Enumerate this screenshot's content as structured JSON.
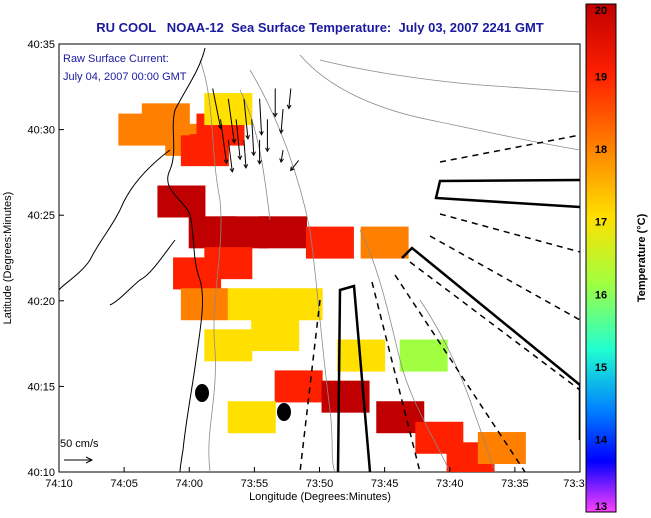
{
  "title": "RU COOL   NOAA-12  Sea Surface Temperature:  July 03, 2007 2241 GMT",
  "current_label": "Raw Surface Current:",
  "current_time": "July 04, 2007 00:00 GMT",
  "scale_label": "50 cm/s",
  "x_axis_label": "Longitude (Degrees:Minutes)",
  "y_axis_label": "Latitude (Degrees:Minutes)",
  "x_ticks": [
    "74:10",
    "74:05",
    "74:00",
    "73:55",
    "73:50",
    "73:45",
    "73:40",
    "73:35",
    "73:3"
  ],
  "y_ticks": [
    "40:35",
    "40:30",
    "40:25",
    "40:20",
    "40:15",
    "40:10"
  ],
  "colorbar": {
    "label": "Temperature (°C)",
    "min": 13,
    "max": 20,
    "ticks": [
      "20",
      "19",
      "18",
      "17",
      "16",
      "15",
      "14",
      "13"
    ],
    "colors": [
      "#c00000",
      "#ff2000",
      "#ff8000",
      "#ffe000",
      "#a0ff40",
      "#20ffd0",
      "#0080ff",
      "#0000ff",
      "#ff40ff"
    ]
  },
  "sst_cells": [
    {
      "lon": 74.0,
      "lat": 40.49,
      "t": 18.6
    },
    {
      "lon": 73.98,
      "lat": 40.48,
      "t": 19.2
    },
    {
      "lon": 73.96,
      "lat": 40.5,
      "t": 18.8
    },
    {
      "lon": 74.03,
      "lat": 40.51,
      "t": 18.2
    },
    {
      "lon": 74.06,
      "lat": 40.5,
      "t": 18.4
    },
    {
      "lon": 73.95,
      "lat": 40.52,
      "t": 17.8
    },
    {
      "lon": 74.01,
      "lat": 40.43,
      "t": 19.8
    },
    {
      "lon": 73.97,
      "lat": 40.4,
      "t": 19.7
    },
    {
      "lon": 73.93,
      "lat": 40.4,
      "t": 19.6
    },
    {
      "lon": 73.88,
      "lat": 40.4,
      "t": 19.8
    },
    {
      "lon": 73.82,
      "lat": 40.39,
      "t": 19.3
    },
    {
      "lon": 73.75,
      "lat": 40.39,
      "t": 18.4
    },
    {
      "lon": 73.99,
      "lat": 40.36,
      "t": 19.4
    },
    {
      "lon": 73.95,
      "lat": 40.37,
      "t": 19.2
    },
    {
      "lon": 73.98,
      "lat": 40.33,
      "t": 18.6
    },
    {
      "lon": 73.92,
      "lat": 40.33,
      "t": 17.8
    },
    {
      "lon": 73.86,
      "lat": 40.33,
      "t": 17.4
    },
    {
      "lon": 73.95,
      "lat": 40.29,
      "t": 17.2
    },
    {
      "lon": 73.89,
      "lat": 40.3,
      "t": 17.0
    },
    {
      "lon": 73.86,
      "lat": 40.25,
      "t": 19.5
    },
    {
      "lon": 73.8,
      "lat": 40.24,
      "t": 19.7
    },
    {
      "lon": 73.73,
      "lat": 40.22,
      "t": 19.6
    },
    {
      "lon": 73.68,
      "lat": 40.2,
      "t": 19.2
    },
    {
      "lon": 73.64,
      "lat": 40.18,
      "t": 18.8
    },
    {
      "lon": 73.6,
      "lat": 40.19,
      "t": 18.2
    },
    {
      "lon": 73.92,
      "lat": 40.22,
      "t": 17.6
    },
    {
      "lon": 73.7,
      "lat": 40.28,
      "t": 16.8
    },
    {
      "lon": 73.78,
      "lat": 40.28,
      "t": 17.4
    }
  ],
  "current_vectors": [
    {
      "lon": 73.97,
      "lat": 40.54,
      "u": 0.2,
      "v": -1.0
    },
    {
      "lon": 73.95,
      "lat": 40.53,
      "u": 0.15,
      "v": -1.1
    },
    {
      "lon": 73.93,
      "lat": 40.53,
      "u": 0.1,
      "v": -1.0
    },
    {
      "lon": 73.91,
      "lat": 40.53,
      "u": 0.05,
      "v": -0.9
    },
    {
      "lon": 73.89,
      "lat": 40.54,
      "u": 0.0,
      "v": -0.7
    },
    {
      "lon": 73.87,
      "lat": 40.54,
      "u": -0.05,
      "v": -0.5
    },
    {
      "lon": 73.96,
      "lat": 40.51,
      "u": 0.15,
      "v": -1.1
    },
    {
      "lon": 73.94,
      "lat": 40.51,
      "u": 0.1,
      "v": -1.0
    },
    {
      "lon": 73.92,
      "lat": 40.51,
      "u": 0.05,
      "v": -0.9
    },
    {
      "lon": 73.9,
      "lat": 40.51,
      "u": 0.0,
      "v": -0.8
    },
    {
      "lon": 73.88,
      "lat": 40.52,
      "u": -0.05,
      "v": -0.6
    },
    {
      "lon": 73.95,
      "lat": 40.49,
      "u": 0.1,
      "v": -0.8
    },
    {
      "lon": 73.93,
      "lat": 40.49,
      "u": 0.05,
      "v": -0.7
    },
    {
      "lon": 73.91,
      "lat": 40.49,
      "u": 0.0,
      "v": -0.6
    },
    {
      "lon": 73.88,
      "lat": 40.48,
      "u": -0.05,
      "v": -0.3
    },
    {
      "lon": 73.86,
      "lat": 40.47,
      "u": -0.2,
      "v": -0.25
    }
  ]
}
